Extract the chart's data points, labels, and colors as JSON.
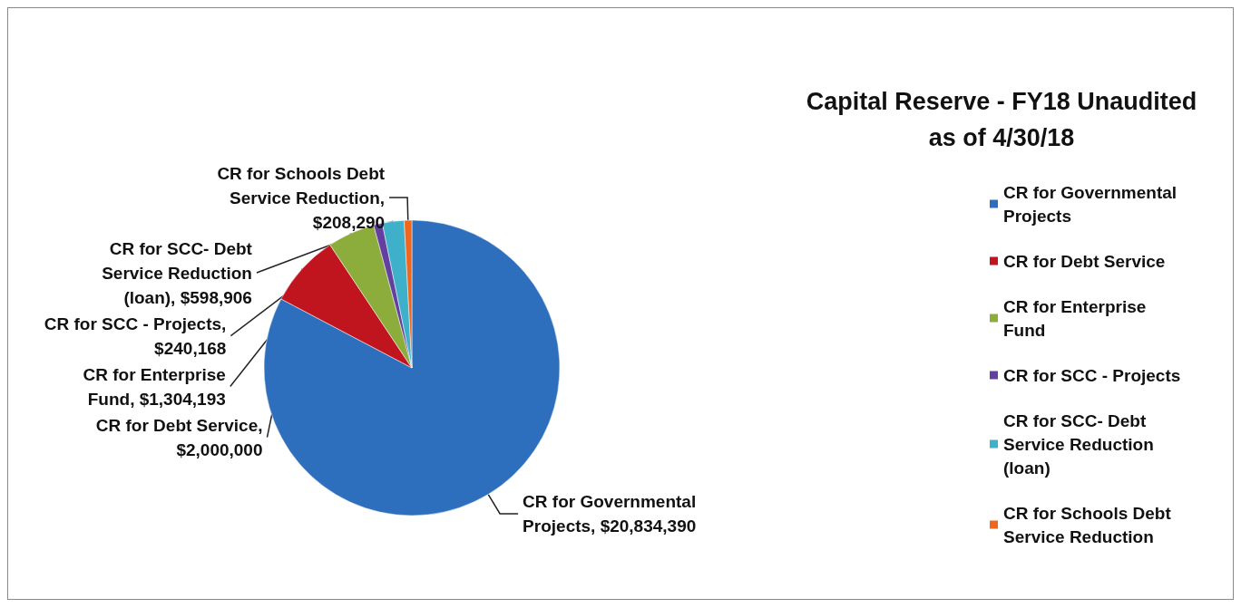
{
  "chart_data": {
    "type": "pie",
    "title": "Capital Reserve - FY18 Unaudited\nas of 4/30/18",
    "categories": [
      "CR for Governmental Projects",
      "CR for Debt Service",
      "CR for Enterprise Fund",
      "CR for SCC - Projects",
      "CR for SCC- Debt Service Reduction (loan)",
      "CR for Schools Debt Service Reduction"
    ],
    "values": [
      20834390,
      2000000,
      1304193,
      240168,
      598906,
      208290
    ],
    "value_labels": [
      "CR for Governmental Projects, $20,834,390",
      "CR for Debt Service, $2,000,000",
      "CR for Enterprise Fund, $1,304,193",
      "CR for SCC - Projects, $240,168",
      "CR for SCC- Debt Service Reduction (loan), $598,906",
      "CR for Schools Debt Service Reduction, $208,290"
    ],
    "colors": [
      "#2e6fbd",
      "#c0151e",
      "#8cac3c",
      "#6340a0",
      "#3eb0c9",
      "#f0661f"
    ],
    "legend": "right"
  }
}
